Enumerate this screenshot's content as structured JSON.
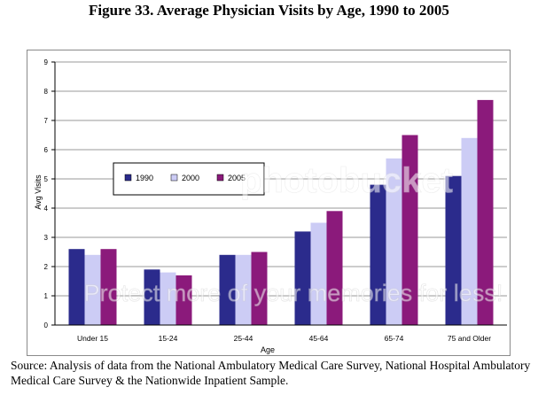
{
  "title": "Figure 33. Average Physician Visits by Age, 1990 to 2005",
  "source_text": "Source:  Analysis of data from the National Ambulatory Medical Care Survey, National Hospital Ambulatory Medical Care Survey & the Nationwide Inpatient Sample.",
  "watermark": "Protect more of your memories for less!",
  "watermark_brand": "photobucket",
  "chart_data": {
    "type": "bar",
    "title": "",
    "xlabel": "Age",
    "ylabel": "Avg Visits",
    "ylim": [
      0,
      9
    ],
    "yticks": [
      0,
      1,
      2,
      3,
      4,
      5,
      6,
      7,
      8,
      9
    ],
    "categories": [
      "Under 15",
      "15-24",
      "25-44",
      "45-64",
      "65-74",
      "75 and Older"
    ],
    "series": [
      {
        "name": "1990",
        "color": "#2b2b8c",
        "values": [
          2.6,
          1.9,
          2.4,
          3.2,
          4.8,
          5.1
        ]
      },
      {
        "name": "2000",
        "color": "#ccccf5",
        "values": [
          2.4,
          1.8,
          2.4,
          3.5,
          5.7,
          6.4
        ]
      },
      {
        "name": "2005",
        "color": "#8b1a7b",
        "values": [
          2.6,
          1.7,
          2.5,
          3.9,
          6.5,
          7.7
        ]
      }
    ],
    "grid": true,
    "legend_position": "upper-left inside plot"
  }
}
